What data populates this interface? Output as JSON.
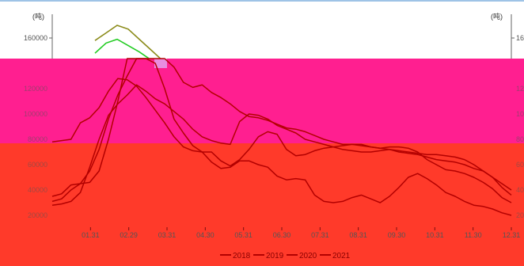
{
  "colors": {
    "top_line": "#9ec3e6",
    "overlay_magenta": "#ff1f90",
    "overlay_red": "#ff3a2a",
    "overlay_pink_small": "#e88ee0",
    "line_olive": "#8b8b1a",
    "line_green": "#22cc22",
    "series_line": "#b30000"
  },
  "chart_data": {
    "type": "line",
    "unit_left": "(吨)",
    "unit_right": "(吨)",
    "y_ticks_left": [
      "160000",
      "140000",
      "120000",
      "100000",
      "80000",
      "60000",
      "40000",
      "20000"
    ],
    "y_ticks_right": [
      "160000",
      "140000",
      "120000",
      "100000",
      "80000",
      "60000",
      "40000",
      "20000"
    ],
    "x_ticks": [
      "01.31",
      "02.29",
      "03.31",
      "04.30",
      "05.31",
      "06.30",
      "07.31",
      "08.31",
      "09.30",
      "10.31",
      "11.30",
      "12.31"
    ],
    "ylim": [
      0,
      175000
    ],
    "legend_position": "bottom",
    "series": [
      {
        "name": "2018",
        "color": "#b30000",
        "values": [
          78000,
          79000,
          80000,
          93000,
          97000,
          105000,
          118000,
          128000,
          127000,
          122000,
          113000,
          103000,
          93000,
          82000,
          74000,
          71000,
          70000,
          70000,
          63000,
          59000,
          64000,
          72000,
          82000,
          86000,
          84000,
          72000,
          67000,
          68000,
          71000,
          73000,
          74000,
          75000,
          76000,
          76000,
          74000,
          73000,
          74000,
          74000,
          73000,
          70000,
          64000,
          60000,
          56000,
          55000,
          53000,
          50000,
          46000,
          41000,
          34000,
          30000
        ]
      },
      {
        "name": "2019",
        "color": "#b30000",
        "values": [
          35000,
          37000,
          44000,
          45000,
          46000,
          55000,
          80000,
          110000,
          150000,
          175000,
          172000,
          160000,
          145000,
          137000,
          125000,
          121000,
          123000,
          117000,
          113000,
          108000,
          102000,
          98000,
          97000,
          95000,
          92000,
          89000,
          88000,
          86000,
          83000,
          80000,
          78000,
          76000,
          76000,
          75000,
          74000,
          73000,
          72000,
          70000,
          69000,
          68000,
          66000,
          64000,
          63000,
          62000,
          60000,
          57000,
          55000,
          50000,
          42000,
          36000
        ]
      },
      {
        "name": "2020",
        "color": "#b30000",
        "values": [
          28000,
          29000,
          31000,
          38000,
          58000,
          80000,
          99000,
          108000,
          115000,
          123000,
          118000,
          112000,
          108000,
          102000,
          96000,
          88000,
          82000,
          79000,
          77000,
          76000,
          94000,
          100000,
          99000,
          96000,
          91000,
          88000,
          85000,
          80000,
          78000,
          76000,
          74000,
          72000,
          71000,
          70000,
          70000,
          71000,
          72000,
          71000,
          70000,
          69000,
          68000,
          68000,
          67000,
          66000,
          64000,
          60000,
          55000,
          50000,
          45000,
          40000
        ]
      },
      {
        "name": "2021",
        "color": "#b30000",
        "values": [
          31000,
          33000,
          40000,
          45000,
          55000,
          72000,
          96000,
          115000,
          130000,
          145000,
          148000,
          140000,
          120000,
          96000,
          85000,
          75000,
          70000,
          62000,
          57000,
          58000,
          63000,
          63000,
          60000,
          58000,
          51000,
          48000,
          49000,
          48000,
          36000,
          31000,
          30000,
          31000,
          34000,
          36000,
          33000,
          30000,
          35000,
          42000,
          50000,
          53000,
          49000,
          44000,
          38000,
          35000,
          31000,
          28000,
          27000,
          25000,
          22000,
          20000
        ]
      }
    ],
    "extra_series": [
      {
        "color": "#8b8b1a",
        "values": [
          158000,
          164000,
          170000,
          167000,
          159000,
          151000,
          143000
        ]
      },
      {
        "color": "#22cc22",
        "values": [
          148000,
          156000,
          159000,
          154000,
          149000,
          143000,
          138000
        ]
      }
    ]
  }
}
